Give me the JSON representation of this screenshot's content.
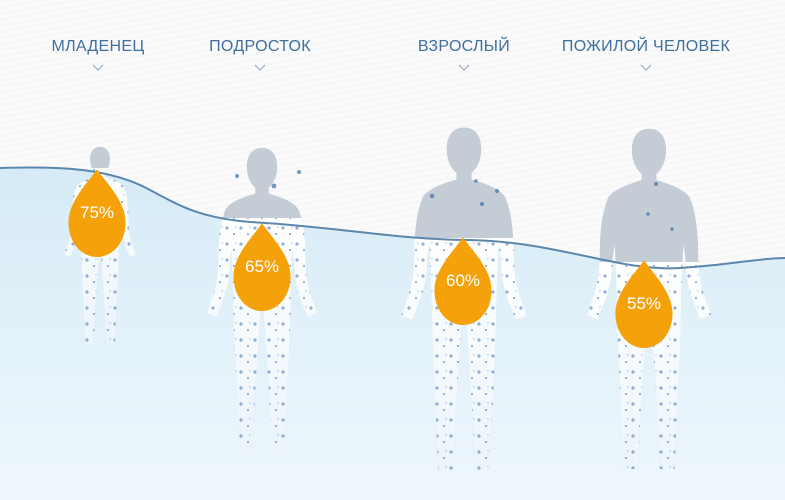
{
  "colors": {
    "label": "#3f6f9f",
    "drop": "#f5a10a",
    "waterline": "#5b87ad",
    "silhouette": "#c4ccd6",
    "water": "#dceef8"
  },
  "figures": [
    {
      "id": "infant",
      "label": "МЛАДЕНЕЦ",
      "percent": "75%",
      "water_fraction": 0.75
    },
    {
      "id": "teen",
      "label": "ПОДРОСТОК",
      "percent": "65%",
      "water_fraction": 0.65
    },
    {
      "id": "adult",
      "label": "ВЗРОСЛЫЙ",
      "percent": "60%",
      "water_fraction": 0.6
    },
    {
      "id": "elderly",
      "label": "ПОЖИЛОЙ ЧЕЛОВЕК",
      "percent": "55%",
      "water_fraction": 0.55
    }
  ],
  "icons": {
    "chevron": "chevron-down-icon",
    "drop": "water-drop-icon",
    "person": "person-silhouette-icon"
  }
}
